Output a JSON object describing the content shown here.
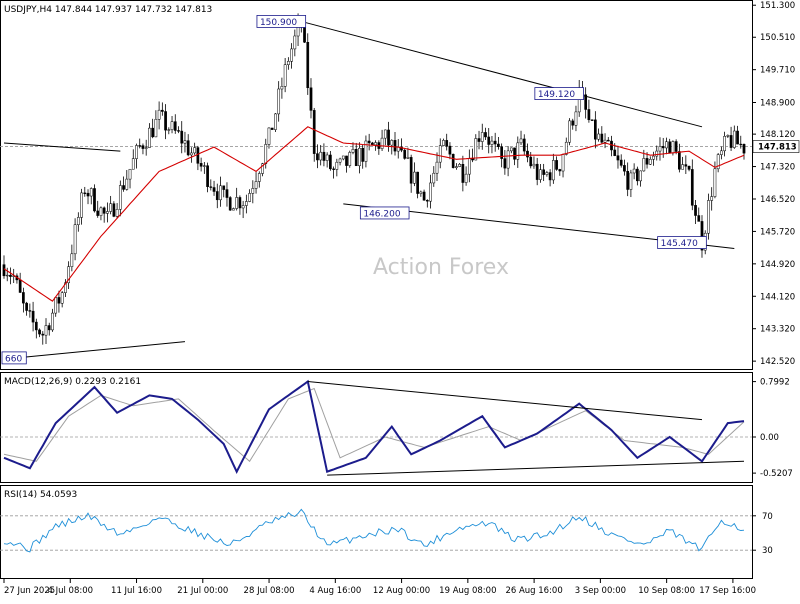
{
  "header": {
    "symbol_line": "USDJPY,H4  147.844 147.937 147.732 147.813"
  },
  "watermark": "Action Forex",
  "colors": {
    "candle": "#000000",
    "ma": "#d40000",
    "trend": "#000000",
    "macd": "#1c1c8c",
    "signal": "#a0a0a0",
    "rsi": "#1e8fd8",
    "grid": "#c8c8c8",
    "axis_text": "#000000",
    "watermark": "#c8c8c8"
  },
  "chart_data": [
    {
      "type": "candlestick",
      "panel": "price",
      "title": "USDJPY,H4  147.844 147.937 147.732 147.813",
      "ylim": [
        142.4,
        151.33
      ],
      "yticks": [
        "151.300",
        "150.510",
        "149.710",
        "148.900",
        "148.120",
        "147.320",
        "146.520",
        "145.720",
        "144.920",
        "144.120",
        "143.320",
        "142.520"
      ],
      "last_price": "147.813",
      "x_labels": [
        "27 Jun 2025",
        "4 Jul 08:00",
        "11 Jul 16:00",
        "21 Jul 00:00",
        "28 Jul 08:00",
        "4 Aug 16:00",
        "12 Aug 00:00",
        "19 Aug 08:00",
        "26 Aug 16:00",
        "3 Sep 00:00",
        "10 Sep 08:00",
        "17 Sep 16:00"
      ],
      "keypoints": [
        {
          "i": 0,
          "v": 144.9
        },
        {
          "i": 3,
          "v": 144.6
        },
        {
          "i": 7,
          "v": 143.6
        },
        {
          "i": 12,
          "v": 143.2
        },
        {
          "i": 18,
          "v": 144.2
        },
        {
          "i": 25,
          "v": 146.8
        },
        {
          "i": 32,
          "v": 146.0
        },
        {
          "i": 42,
          "v": 147.8
        },
        {
          "i": 48,
          "v": 148.5
        },
        {
          "i": 55,
          "v": 148.0
        },
        {
          "i": 62,
          "v": 147.2
        },
        {
          "i": 68,
          "v": 146.5
        },
        {
          "i": 75,
          "v": 146.5
        },
        {
          "i": 82,
          "v": 148.0
        },
        {
          "i": 88,
          "v": 150.0
        },
        {
          "i": 92,
          "v": 150.9
        },
        {
          "i": 96,
          "v": 147.8
        },
        {
          "i": 102,
          "v": 147.2
        },
        {
          "i": 110,
          "v": 147.6
        },
        {
          "i": 118,
          "v": 148.0
        },
        {
          "i": 125,
          "v": 147.3
        },
        {
          "i": 130,
          "v": 146.5
        },
        {
          "i": 136,
          "v": 147.8
        },
        {
          "i": 142,
          "v": 147.2
        },
        {
          "i": 148,
          "v": 148.3
        },
        {
          "i": 154,
          "v": 147.4
        },
        {
          "i": 160,
          "v": 147.8
        },
        {
          "i": 166,
          "v": 147.0
        },
        {
          "i": 172,
          "v": 147.4
        },
        {
          "i": 178,
          "v": 149.12
        },
        {
          "i": 182,
          "v": 148.2
        },
        {
          "i": 188,
          "v": 147.6
        },
        {
          "i": 194,
          "v": 146.9
        },
        {
          "i": 200,
          "v": 147.6
        },
        {
          "i": 206,
          "v": 147.9
        },
        {
          "i": 212,
          "v": 147.0
        },
        {
          "i": 216,
          "v": 145.47
        },
        {
          "i": 220,
          "v": 147.2
        },
        {
          "i": 224,
          "v": 148.0
        },
        {
          "i": 229,
          "v": 147.81
        }
      ],
      "ma_keypoints": [
        {
          "i": 0,
          "v": 144.8
        },
        {
          "i": 15,
          "v": 144.0
        },
        {
          "i": 30,
          "v": 145.6
        },
        {
          "i": 48,
          "v": 147.2
        },
        {
          "i": 65,
          "v": 147.8
        },
        {
          "i": 78,
          "v": 147.2
        },
        {
          "i": 94,
          "v": 148.3
        },
        {
          "i": 105,
          "v": 147.9
        },
        {
          "i": 122,
          "v": 147.8
        },
        {
          "i": 140,
          "v": 147.5
        },
        {
          "i": 160,
          "v": 147.6
        },
        {
          "i": 172,
          "v": 147.6
        },
        {
          "i": 186,
          "v": 147.9
        },
        {
          "i": 200,
          "v": 147.6
        },
        {
          "i": 212,
          "v": 147.7
        },
        {
          "i": 220,
          "v": 147.3
        },
        {
          "i": 229,
          "v": 147.6
        }
      ],
      "trendlines": [
        {
          "i1": 0,
          "v1": 147.9,
          "i2": 36,
          "v2": 147.7
        },
        {
          "i1": 92,
          "v1": 150.9,
          "i2": 216,
          "v2": 148.3
        },
        {
          "i1": 105,
          "v1": 146.4,
          "i2": 226,
          "v2": 145.3
        },
        {
          "i1": 4,
          "v1": 142.6,
          "i2": 56,
          "v2": 143.0
        }
      ],
      "annotations": [
        {
          "text": "150.900",
          "i": 92,
          "v": 150.9
        },
        {
          "text": "149.120",
          "i": 178,
          "v": 149.12
        },
        {
          "text": "146.200",
          "i": 124,
          "v": 146.2
        },
        {
          "text": "145.470",
          "i": 216,
          "v": 145.47
        },
        {
          "text": "660",
          "i": 3,
          "v": 142.6
        }
      ]
    },
    {
      "type": "line",
      "panel": "macd",
      "title": "MACD(12,26,9) 0.2293 0.2161",
      "ylim": [
        -0.62,
        0.88
      ],
      "yticks": [
        "0.7992",
        "0.00",
        "-0.5207"
      ],
      "macd_keypoints": [
        {
          "i": 0,
          "v": -0.3
        },
        {
          "i": 8,
          "v": -0.45
        },
        {
          "i": 16,
          "v": 0.2
        },
        {
          "i": 28,
          "v": 0.72
        },
        {
          "i": 35,
          "v": 0.35
        },
        {
          "i": 45,
          "v": 0.6
        },
        {
          "i": 52,
          "v": 0.55
        },
        {
          "i": 60,
          "v": 0.25
        },
        {
          "i": 68,
          "v": -0.1
        },
        {
          "i": 72,
          "v": -0.5
        },
        {
          "i": 82,
          "v": 0.4
        },
        {
          "i": 94,
          "v": 0.8
        },
        {
          "i": 100,
          "v": -0.5
        },
        {
          "i": 112,
          "v": -0.3
        },
        {
          "i": 120,
          "v": 0.15
        },
        {
          "i": 126,
          "v": -0.25
        },
        {
          "i": 135,
          "v": -0.05
        },
        {
          "i": 148,
          "v": 0.3
        },
        {
          "i": 155,
          "v": -0.15
        },
        {
          "i": 165,
          "v": 0.05
        },
        {
          "i": 178,
          "v": 0.48
        },
        {
          "i": 188,
          "v": 0.1
        },
        {
          "i": 196,
          "v": -0.3
        },
        {
          "i": 206,
          "v": 0.0
        },
        {
          "i": 216,
          "v": -0.35
        },
        {
          "i": 224,
          "v": 0.2
        },
        {
          "i": 229,
          "v": 0.23
        }
      ],
      "signal_keypoints": [
        {
          "i": 0,
          "v": -0.25
        },
        {
          "i": 10,
          "v": -0.35
        },
        {
          "i": 20,
          "v": 0.3
        },
        {
          "i": 30,
          "v": 0.6
        },
        {
          "i": 40,
          "v": 0.45
        },
        {
          "i": 54,
          "v": 0.55
        },
        {
          "i": 66,
          "v": 0.05
        },
        {
          "i": 76,
          "v": -0.35
        },
        {
          "i": 88,
          "v": 0.55
        },
        {
          "i": 96,
          "v": 0.7
        },
        {
          "i": 104,
          "v": -0.3
        },
        {
          "i": 118,
          "v": 0.0
        },
        {
          "i": 130,
          "v": -0.15
        },
        {
          "i": 150,
          "v": 0.15
        },
        {
          "i": 160,
          "v": -0.05
        },
        {
          "i": 180,
          "v": 0.38
        },
        {
          "i": 192,
          "v": -0.05
        },
        {
          "i": 210,
          "v": -0.15
        },
        {
          "i": 218,
          "v": -0.25
        },
        {
          "i": 229,
          "v": 0.22
        }
      ],
      "trendlines": [
        {
          "i1": 94,
          "v1": 0.8,
          "i2": 216,
          "v2": 0.25
        },
        {
          "i1": 100,
          "v1": -0.55,
          "i2": 229,
          "v2": -0.35
        }
      ]
    },
    {
      "type": "line",
      "panel": "rsi",
      "title": "RSI(14) 54.0593",
      "ylim": [
        0,
        100
      ],
      "yticks": [
        "70",
        "30"
      ],
      "levels": [
        70,
        30
      ],
      "rsi_keypoints": [
        {
          "i": 0,
          "v": 42
        },
        {
          "i": 8,
          "v": 32
        },
        {
          "i": 16,
          "v": 58
        },
        {
          "i": 26,
          "v": 70
        },
        {
          "i": 36,
          "v": 48
        },
        {
          "i": 48,
          "v": 68
        },
        {
          "i": 60,
          "v": 50
        },
        {
          "i": 70,
          "v": 36
        },
        {
          "i": 82,
          "v": 62
        },
        {
          "i": 92,
          "v": 74
        },
        {
          "i": 100,
          "v": 35
        },
        {
          "i": 112,
          "v": 48
        },
        {
          "i": 122,
          "v": 55
        },
        {
          "i": 130,
          "v": 35
        },
        {
          "i": 140,
          "v": 55
        },
        {
          "i": 150,
          "v": 62
        },
        {
          "i": 158,
          "v": 42
        },
        {
          "i": 168,
          "v": 48
        },
        {
          "i": 178,
          "v": 70
        },
        {
          "i": 188,
          "v": 48
        },
        {
          "i": 198,
          "v": 36
        },
        {
          "i": 206,
          "v": 52
        },
        {
          "i": 216,
          "v": 30
        },
        {
          "i": 222,
          "v": 66
        },
        {
          "i": 229,
          "v": 54
        }
      ]
    }
  ]
}
